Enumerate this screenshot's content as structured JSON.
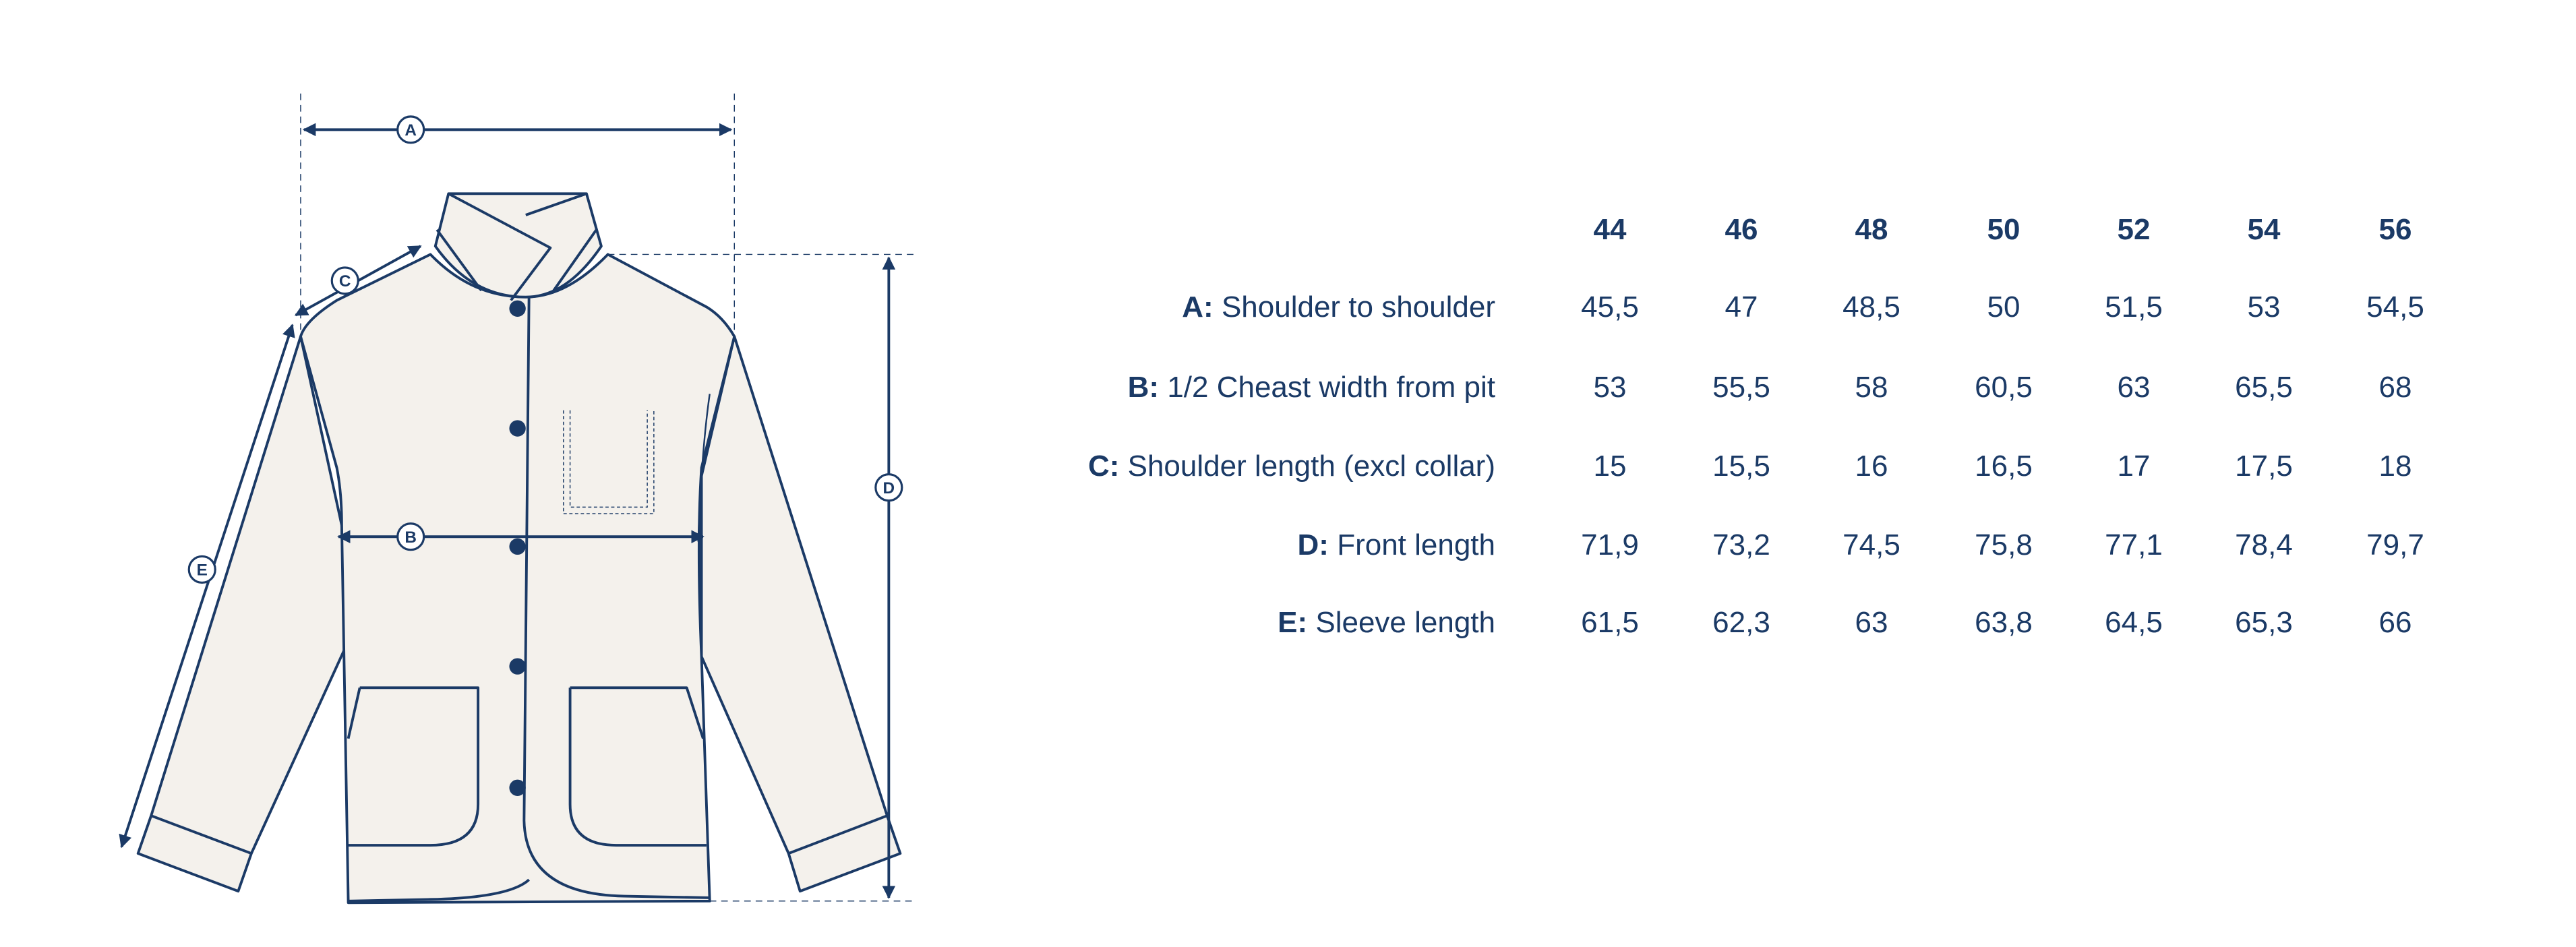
{
  "colors": {
    "ink": "#1b3a66",
    "fabric": "#f4f1ec"
  },
  "diagram": {
    "markers": {
      "a": "A",
      "b": "B",
      "c": "C",
      "d": "D",
      "e": "E"
    }
  },
  "size_table": {
    "sizes": [
      "44",
      "46",
      "48",
      "50",
      "52",
      "54",
      "56"
    ],
    "rows": [
      {
        "key": "A:",
        "label": "Shoulder to shoulder",
        "values": [
          "45,5",
          "47",
          "48,5",
          "50",
          "51,5",
          "53",
          "54,5"
        ]
      },
      {
        "key": "B:",
        "label": "1/2 Cheast width from pit",
        "values": [
          "53",
          "55,5",
          "58",
          "60,5",
          "63",
          "65,5",
          "68"
        ]
      },
      {
        "key": "C:",
        "label": "Shoulder length (excl collar)",
        "values": [
          "15",
          "15,5",
          "16",
          "16,5",
          "17",
          "17,5",
          "18"
        ]
      },
      {
        "key": "D:",
        "label": "Front length",
        "values": [
          "71,9",
          "73,2",
          "74,5",
          "75,8",
          "77,1",
          "78,4",
          "79,7"
        ]
      },
      {
        "key": "E:",
        "label": "Sleeve length",
        "values": [
          "61,5",
          "62,3",
          "63",
          "63,8",
          "64,5",
          "65,3",
          "66"
        ]
      }
    ]
  }
}
